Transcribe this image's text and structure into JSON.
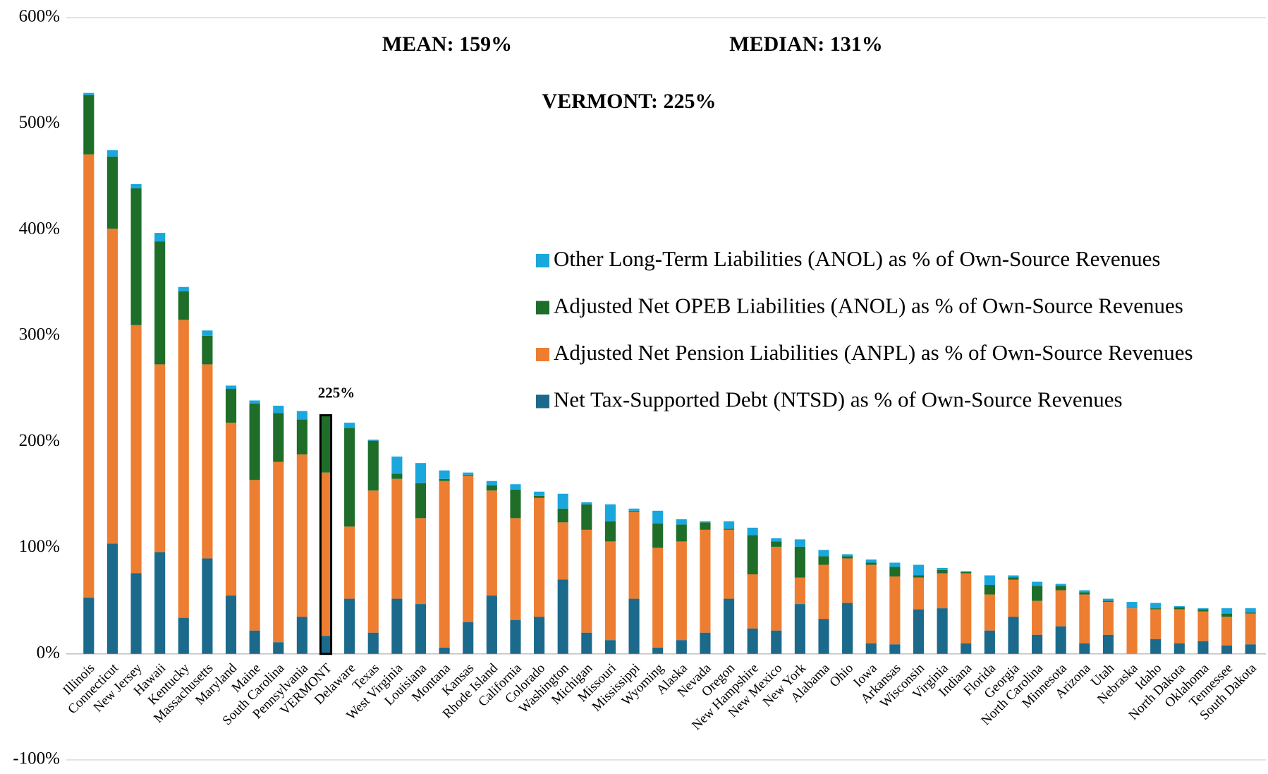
{
  "chart_data": {
    "type": "stacked_bar",
    "annotations": [
      "MEAN: 159%",
      "MEDIAN: 131%",
      "VERMONT: 225%",
      "225%"
    ],
    "highlight": "VERMONT",
    "categories": [
      "Illinois",
      "Connecticut",
      "New Jersey",
      "Hawaii",
      "Kentucky",
      "Massachusetts",
      "Maryland",
      "Maine",
      "South Carolina",
      "Pennsylvania",
      "VERMONT",
      "Delaware",
      "Texas",
      "West Virginia",
      "Louisiana",
      "Montana",
      "Kansas",
      "Rhode Island",
      "California",
      "Colorado",
      "Washington",
      "Michigan",
      "Missouri",
      "Mississippi",
      "Wyoming",
      "Alaska",
      "Nevada",
      "Oregon",
      "New Hampshire",
      "New Mexico",
      "New York",
      "Alabama",
      "Ohio",
      "Iowa",
      "Arkansas",
      "Wisconsin",
      "Virginia",
      "Indiana",
      "Florida",
      "Georgia",
      "North Carolina",
      "Minnesota",
      "Arizona",
      "Utah",
      "Nebraska",
      "Idaho",
      "North Dakota",
      "Oklahoma",
      "Tennessee",
      "South Dakota"
    ],
    "series": [
      {
        "name": "Net Tax-Supported Debt (NTSD) as % of Own-Source Revenues",
        "color": "#1b6a8c",
        "values": [
          53,
          104,
          76,
          96,
          34,
          90,
          55,
          22,
          11,
          35,
          17,
          52,
          20,
          52,
          47,
          6,
          30,
          55,
          32,
          35,
          70,
          20,
          13,
          52,
          6,
          13,
          20,
          52,
          24,
          22,
          47,
          33,
          48,
          10,
          9,
          42,
          43,
          10,
          22,
          35,
          18,
          26,
          10,
          18,
          0,
          14,
          10,
          12,
          8,
          9
        ]
      },
      {
        "name": "Adjusted Net Pension Liabilities (ANPL) as % of Own-Source Revenues",
        "color": "#ed7d31",
        "values": [
          418,
          297,
          234,
          177,
          281,
          183,
          163,
          142,
          170,
          153,
          154,
          68,
          134,
          113,
          81,
          157,
          138,
          99,
          96,
          112,
          54,
          97,
          93,
          82,
          94,
          93,
          97,
          65,
          51,
          79,
          25,
          51,
          42,
          74,
          64,
          30,
          33,
          66,
          34,
          35,
          32,
          34,
          46,
          31,
          43,
          28,
          32,
          28,
          27,
          29
        ]
      },
      {
        "name": "Adjusted Net OPEB Liabilities (ANOL) as % of Own-Source Revenues",
        "color": "#1e6e2a",
        "values": [
          56,
          68,
          129,
          116,
          27,
          27,
          32,
          72,
          46,
          33,
          54,
          93,
          47,
          5,
          33,
          2,
          1,
          5,
          27,
          2,
          13,
          24,
          19,
          1,
          23,
          16,
          7,
          1,
          37,
          5,
          29,
          8,
          2,
          2,
          9,
          2,
          3,
          1,
          9,
          2,
          14,
          4,
          2,
          1,
          0,
          1,
          2,
          2,
          3,
          1
        ]
      },
      {
        "name": "Other Long-Term Liabilities (ANOL) as % of Own-Source Revenues",
        "color": "#1aa7dd",
        "values": [
          2,
          6,
          4,
          8,
          4,
          5,
          3,
          3,
          7,
          8,
          0,
          5,
          1,
          16,
          19,
          8,
          2,
          4,
          5,
          4,
          14,
          2,
          16,
          2,
          12,
          5,
          1,
          7,
          7,
          3,
          7,
          6,
          2,
          3,
          4,
          10,
          2,
          1,
          9,
          2,
          4,
          2,
          2,
          2,
          6,
          5,
          1,
          1,
          5,
          4
        ]
      }
    ],
    "ylim": [
      -100,
      600
    ],
    "yticks": [
      {
        "value": -100,
        "label": "-100%"
      },
      {
        "value": 0,
        "label": "0%"
      },
      {
        "value": 100,
        "label": "100%"
      },
      {
        "value": 200,
        "label": "200%"
      },
      {
        "value": 300,
        "label": "300%"
      },
      {
        "value": 400,
        "label": "400%"
      },
      {
        "value": 500,
        "label": "500%"
      },
      {
        "value": 600,
        "label": "600%"
      }
    ],
    "grid": false
  }
}
